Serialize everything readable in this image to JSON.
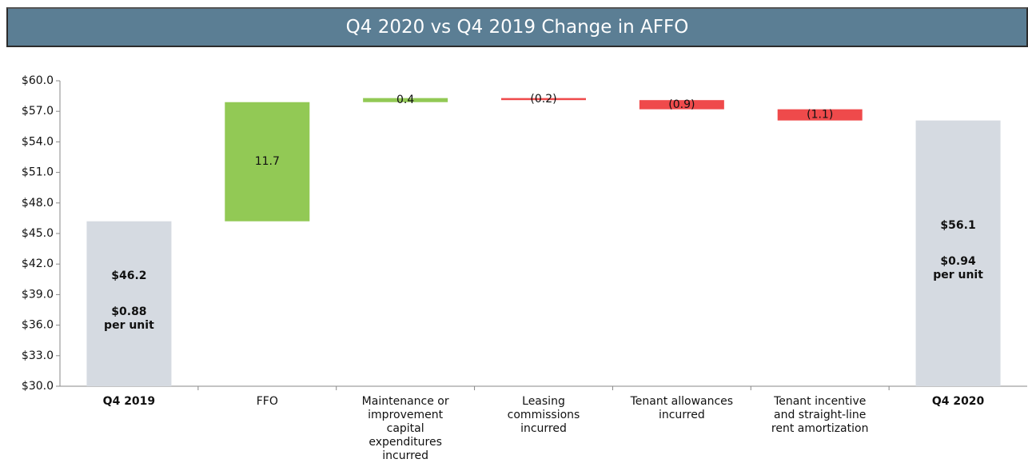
{
  "chart_data": {
    "type": "waterfall",
    "title": "Q4 2020 vs Q4 2019 Change in AFFO",
    "categories": [
      "Q4 2019",
      "FFO",
      "Maintenance or improvement capital expenditures incurred",
      "Leasing commissions incurred",
      "Tenant allowances incurred",
      "Tenant incentive and straight-line rent amortization",
      "Q4 2020"
    ],
    "values": [
      46.2,
      11.7,
      0.4,
      -0.2,
      -0.9,
      -1.1,
      56.1
    ],
    "value_labels": [
      "$46.2",
      "11.7",
      "0.4",
      "(0.2)",
      "(0.9)",
      "(1.1)",
      "$56.1"
    ],
    "totals_per_unit": [
      "$0.88",
      "$0.94"
    ],
    "per_unit_caption": "per unit",
    "colors": {
      "total": "#d5dae1",
      "increase": "#92c955",
      "decrease": "#ef4a4b"
    },
    "ylim": [
      30,
      60
    ],
    "yticks": [
      {
        "value": 30,
        "label": "$30.0"
      },
      {
        "value": 33,
        "label": "$33.0"
      },
      {
        "value": 36,
        "label": "$36.0"
      },
      {
        "value": 39,
        "label": "$39.0"
      },
      {
        "value": 42,
        "label": "$42.0"
      },
      {
        "value": 45,
        "label": "$45.0"
      },
      {
        "value": 48,
        "label": "$48.0"
      },
      {
        "value": 51,
        "label": "$51.0"
      },
      {
        "value": 54,
        "label": "$54.0"
      },
      {
        "value": 57,
        "label": "$57.0"
      },
      {
        "value": 60,
        "label": "$60.0"
      }
    ]
  }
}
